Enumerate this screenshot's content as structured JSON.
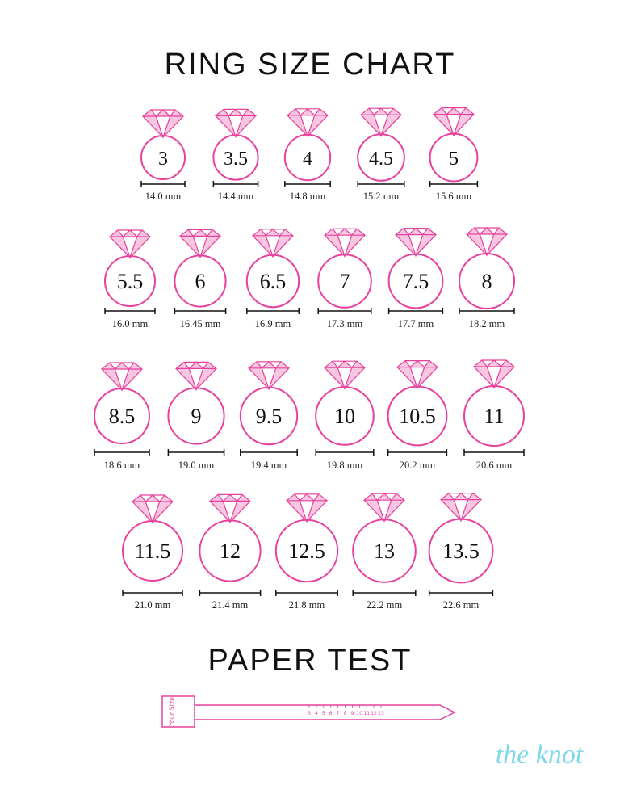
{
  "title": "RING SIZE CHART",
  "rows": [
    [
      {
        "size": "3",
        "mm": "14.0 mm"
      },
      {
        "size": "3.5",
        "mm": "14.4 mm"
      },
      {
        "size": "4",
        "mm": "14.8 mm"
      },
      {
        "size": "4.5",
        "mm": "15.2 mm"
      },
      {
        "size": "5",
        "mm": "15.6 mm"
      }
    ],
    [
      {
        "size": "5.5",
        "mm": "16.0 mm"
      },
      {
        "size": "6",
        "mm": "16.45 mm"
      },
      {
        "size": "6.5",
        "mm": "16.9 mm"
      },
      {
        "size": "7",
        "mm": "17.3 mm"
      },
      {
        "size": "7.5",
        "mm": "17.7 mm"
      },
      {
        "size": "8",
        "mm": "18.2 mm"
      }
    ],
    [
      {
        "size": "8.5",
        "mm": "18.6 mm"
      },
      {
        "size": "9",
        "mm": "19.0 mm"
      },
      {
        "size": "9.5",
        "mm": "19.4 mm"
      },
      {
        "size": "10",
        "mm": "19.8 mm"
      },
      {
        "size": "10.5",
        "mm": "20.2 mm"
      },
      {
        "size": "11",
        "mm": "20.6 mm"
      }
    ],
    [
      {
        "size": "11.5",
        "mm": "21.0 mm"
      },
      {
        "size": "12",
        "mm": "21.4 mm"
      },
      {
        "size": "12.5",
        "mm": "21.8 mm"
      },
      {
        "size": "13",
        "mm": "22.2 mm"
      },
      {
        "size": "13.5",
        "mm": "22.6 mm"
      }
    ]
  ],
  "paper_test": {
    "title": "PAPER TEST",
    "tab_label": "Your Size",
    "scale": [
      "3",
      "4",
      "5",
      "6",
      "7",
      "8",
      "9",
      "10",
      "11",
      "12",
      "13"
    ]
  },
  "logo": "the knot"
}
